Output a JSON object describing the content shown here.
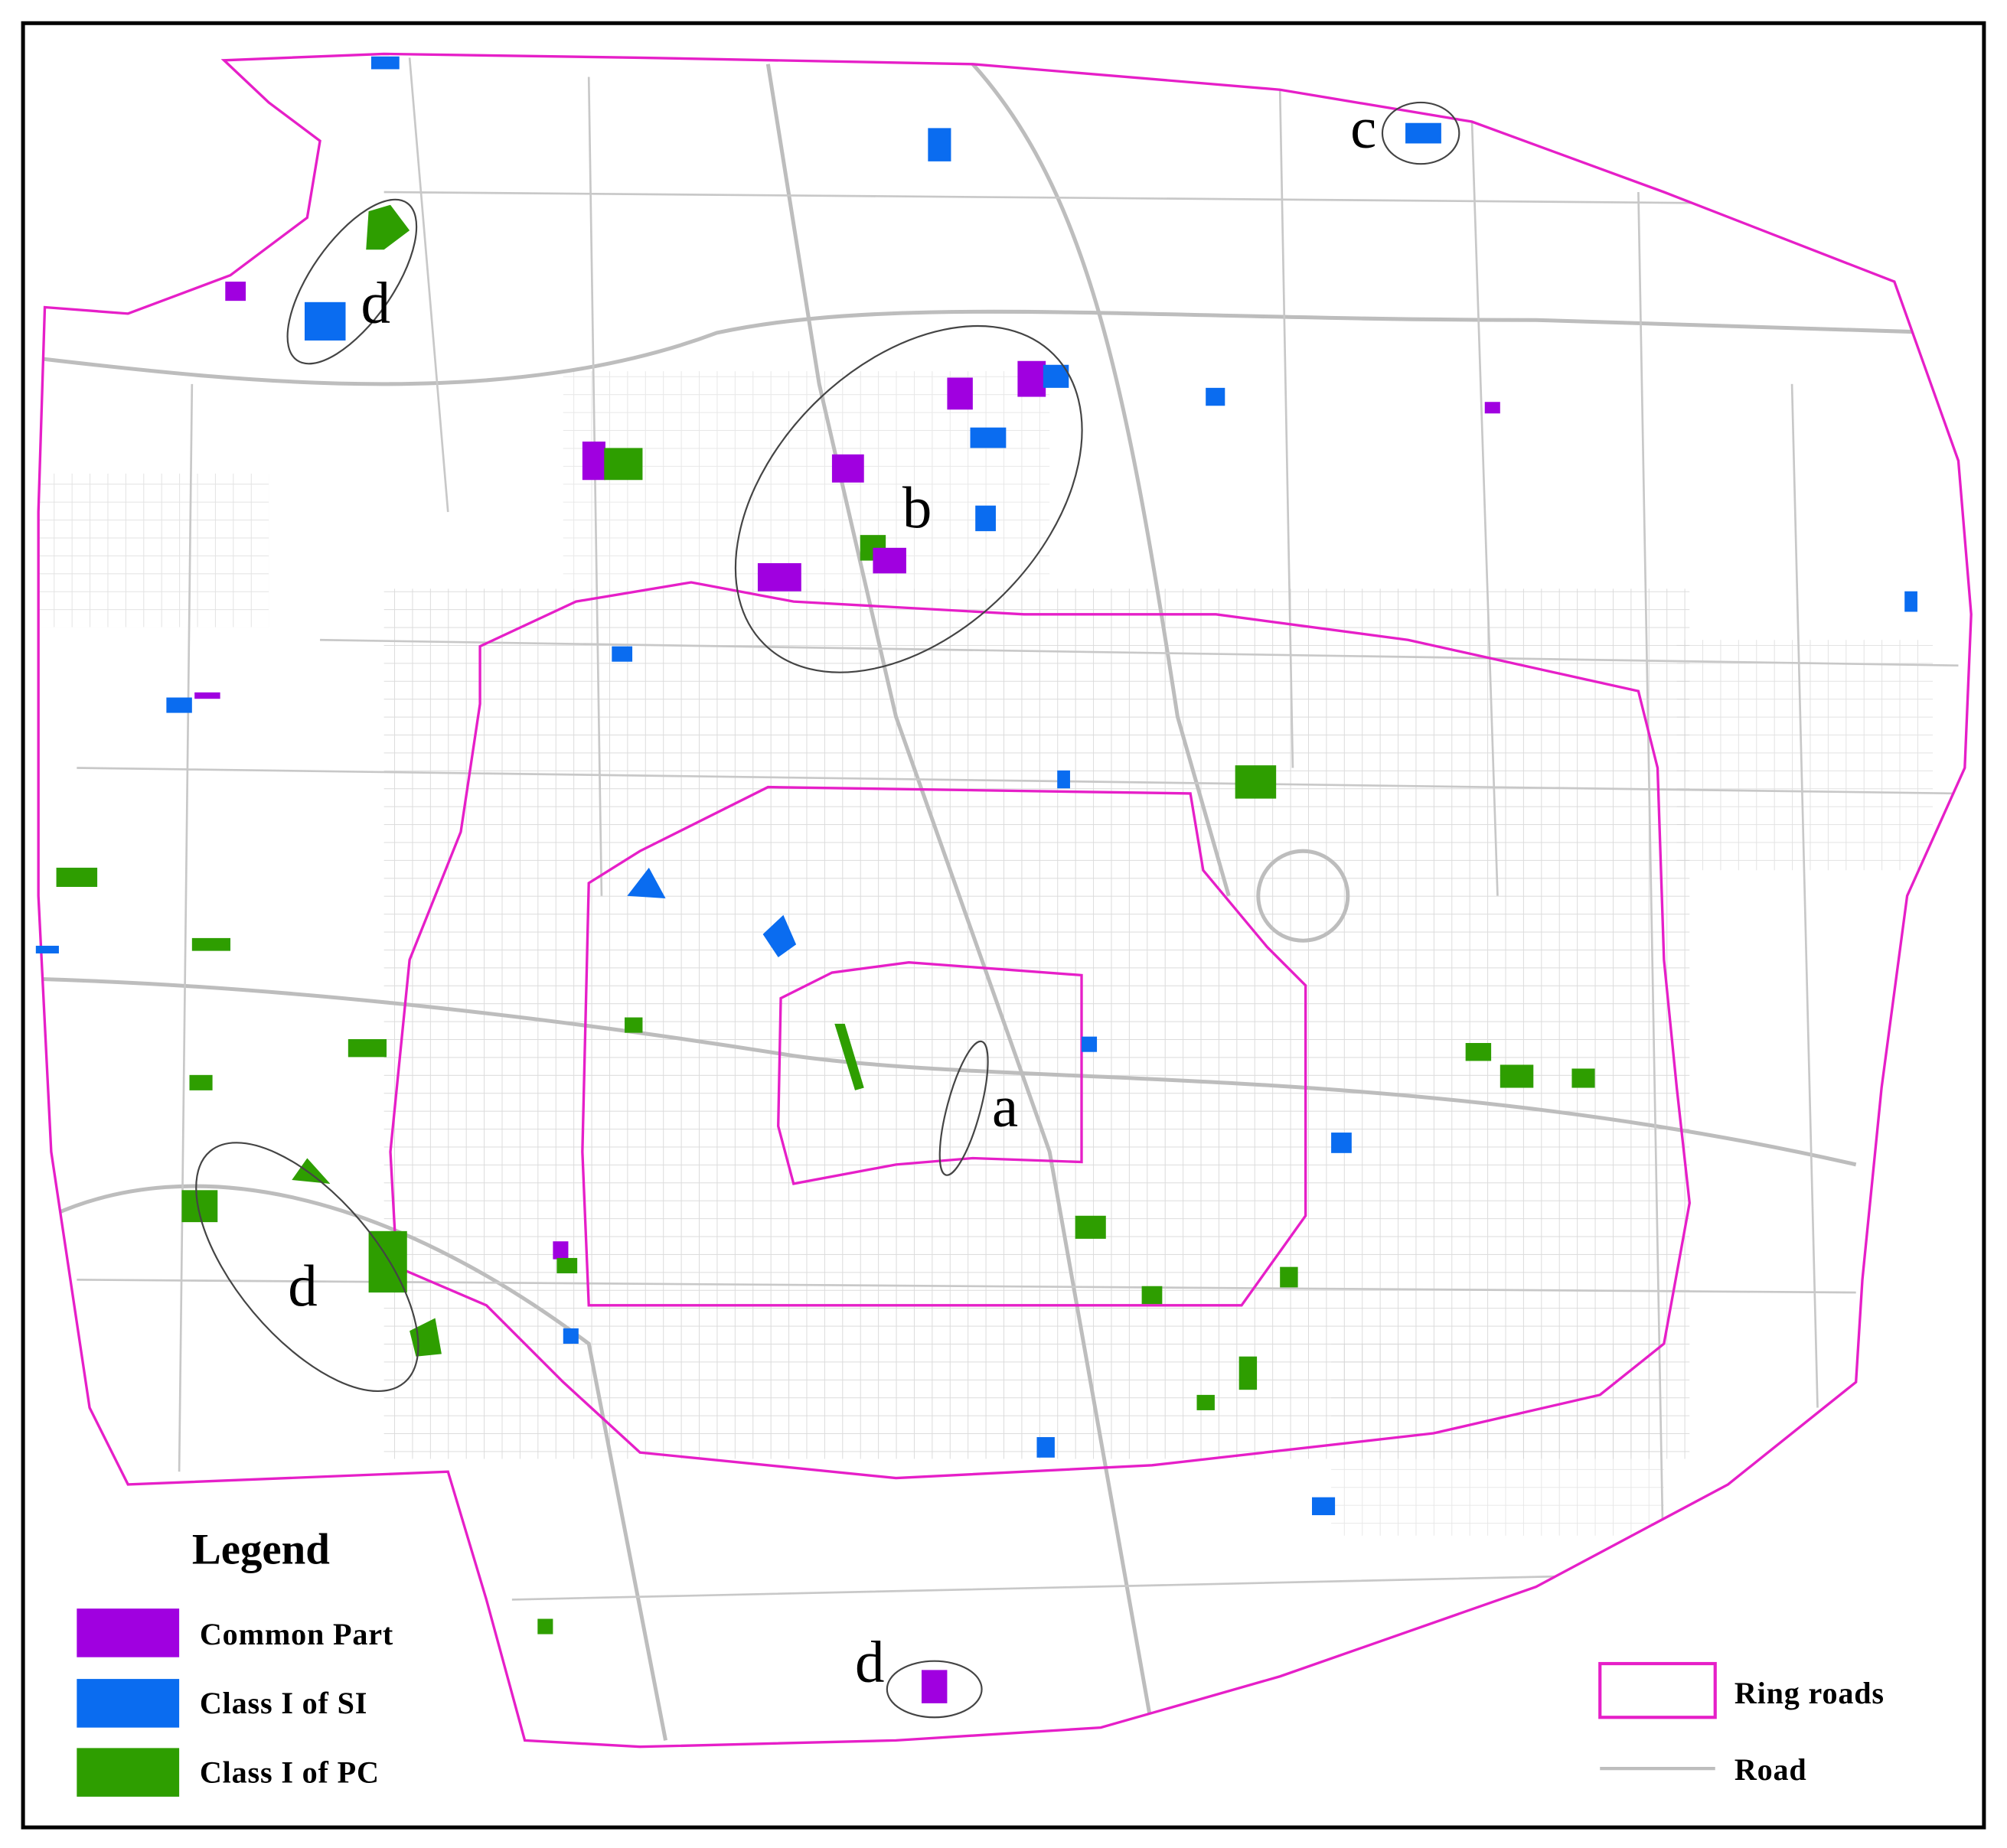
{
  "annotations": [
    "d",
    "b",
    "c",
    "a",
    "d",
    "d"
  ],
  "legend": {
    "title": "Legend",
    "items": [
      "Common Part",
      "Class I of SI",
      "Class I of PC"
    ],
    "lines": [
      "Ring roads",
      "Road"
    ]
  }
}
